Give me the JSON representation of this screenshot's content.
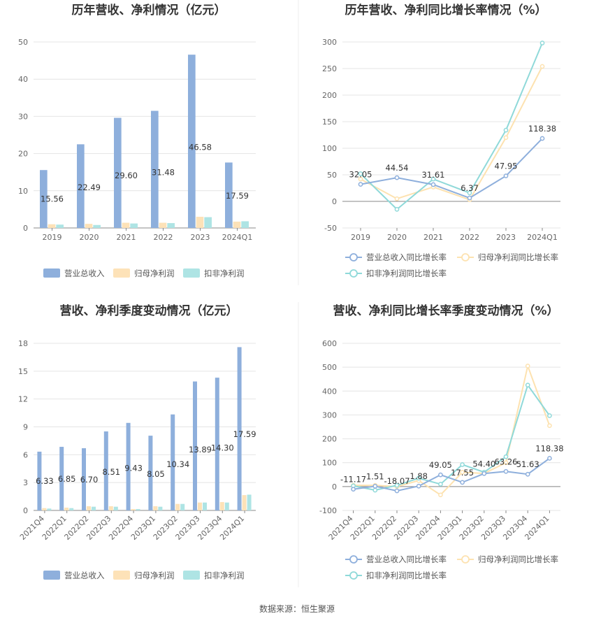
{
  "source_text": "数据来源：恒生聚源",
  "colors": {
    "revenue": "#8eafdc",
    "net": "#fde2b8",
    "deducted": "#aee4e4",
    "revenue_line": "#8eafdc",
    "net_line": "#fde2b0",
    "deducted_line": "#8fd9d9",
    "grid": "#e4e4e4",
    "divider": "#e8e8e8"
  },
  "chart_data": [
    {
      "type": "bar",
      "title": "历年营收、净利情况（亿元）",
      "categories": [
        "2019",
        "2020",
        "2021",
        "2022",
        "2023",
        "2024Q1"
      ],
      "series": [
        {
          "name": "营业总收入",
          "values": [
            15.56,
            22.49,
            29.6,
            31.48,
            46.58,
            17.59
          ]
        },
        {
          "name": "归母净利润",
          "values": [
            1.0,
            1.1,
            1.4,
            1.4,
            3.0,
            1.7
          ]
        },
        {
          "name": "扣非净利润",
          "values": [
            0.9,
            0.8,
            1.2,
            1.3,
            2.9,
            1.8
          ]
        }
      ],
      "labels": [
        "15.56",
        "22.49",
        "29.60",
        "31.48",
        "46.58",
        "17.59"
      ],
      "ylim": [
        0,
        50
      ],
      "yticks": [
        0,
        10,
        20,
        30,
        40,
        50
      ],
      "grid": true,
      "legend": "bottom"
    },
    {
      "type": "line",
      "title": "历年营收、净利同比增长率情况（%）",
      "categories": [
        "2019",
        "2020",
        "2021",
        "2022",
        "2023",
        "2024Q1"
      ],
      "series": [
        {
          "name": "营业总收入同比增长率",
          "values": [
            32.05,
            44.54,
            31.61,
            6.37,
            47.95,
            118.38
          ]
        },
        {
          "name": "归母净利润同比增长率",
          "values": [
            42,
            5,
            27,
            3,
            120,
            254
          ]
        },
        {
          "name": "扣非净利润同比增长率",
          "values": [
            52,
            -15,
            42,
            16,
            134,
            298
          ]
        }
      ],
      "labels": [
        "32.05",
        "44.54",
        "31.61",
        "6.37",
        "47.95",
        "118.38"
      ],
      "ylim": [
        -50,
        300
      ],
      "yticks": [
        -50,
        0,
        50,
        100,
        150,
        200,
        250,
        300
      ],
      "grid": true,
      "legend": "bottom"
    },
    {
      "type": "bar",
      "title": "营收、净利季度变动情况（亿元）",
      "categories": [
        "2021Q4",
        "2022Q1",
        "2022Q2",
        "2022Q3",
        "2022Q4",
        "2023Q1",
        "2023Q2",
        "2023Q3",
        "2023Q4",
        "2024Q1"
      ],
      "series": [
        {
          "name": "营业总收入",
          "values": [
            6.33,
            6.85,
            6.7,
            8.51,
            9.43,
            8.05,
            10.34,
            13.89,
            14.3,
            17.59
          ]
        },
        {
          "name": "归母净利润",
          "values": [
            0.25,
            0.3,
            0.45,
            0.45,
            0.15,
            0.45,
            0.7,
            0.85,
            0.9,
            1.65
          ]
        },
        {
          "name": "扣非净利润",
          "values": [
            0.2,
            0.25,
            0.4,
            0.4,
            0.15,
            0.4,
            0.7,
            0.85,
            0.85,
            1.7
          ]
        }
      ],
      "labels": [
        "6.33",
        "6.85",
        "6.70",
        "8.51",
        "9.43",
        "8.05",
        "10.34",
        "13.89",
        "14.30",
        "17.59"
      ],
      "ylim": [
        0,
        18
      ],
      "yticks": [
        0,
        3,
        6,
        9,
        12,
        15,
        18
      ],
      "grid": true,
      "legend": "bottom"
    },
    {
      "type": "line",
      "title": "营收、净利同比增长率季度变动情况（%）",
      "categories": [
        "2021Q4",
        "2022Q1",
        "2022Q2",
        "2022Q3",
        "2022Q4",
        "2023Q1",
        "2023Q2",
        "2023Q3",
        "2023Q4",
        "2024Q1"
      ],
      "series": [
        {
          "name": "营业总收入同比增长率",
          "values": [
            -11.17,
            1.51,
            -18.07,
            1.88,
            49.05,
            17.55,
            54.4,
            63.26,
            51.63,
            118.38
          ]
        },
        {
          "name": "归母净利润同比增长率",
          "values": [
            5,
            5,
            0,
            25,
            -35,
            60,
            55,
            100,
            505,
            255
          ]
        },
        {
          "name": "扣非净利润同比增长率",
          "values": [
            3,
            -15,
            5,
            35,
            10,
            92,
            60,
            125,
            425,
            297
          ]
        }
      ],
      "labels": [
        "-11.17",
        "1.51",
        "-18.07",
        "1.88",
        "49.05",
        "17.55",
        "54.40",
        "63.26",
        "51.63",
        "118.38"
      ],
      "ylim": [
        -100,
        600
      ],
      "yticks": [
        -100,
        0,
        100,
        200,
        300,
        400,
        500,
        600
      ],
      "grid": true,
      "legend": "bottom"
    }
  ]
}
